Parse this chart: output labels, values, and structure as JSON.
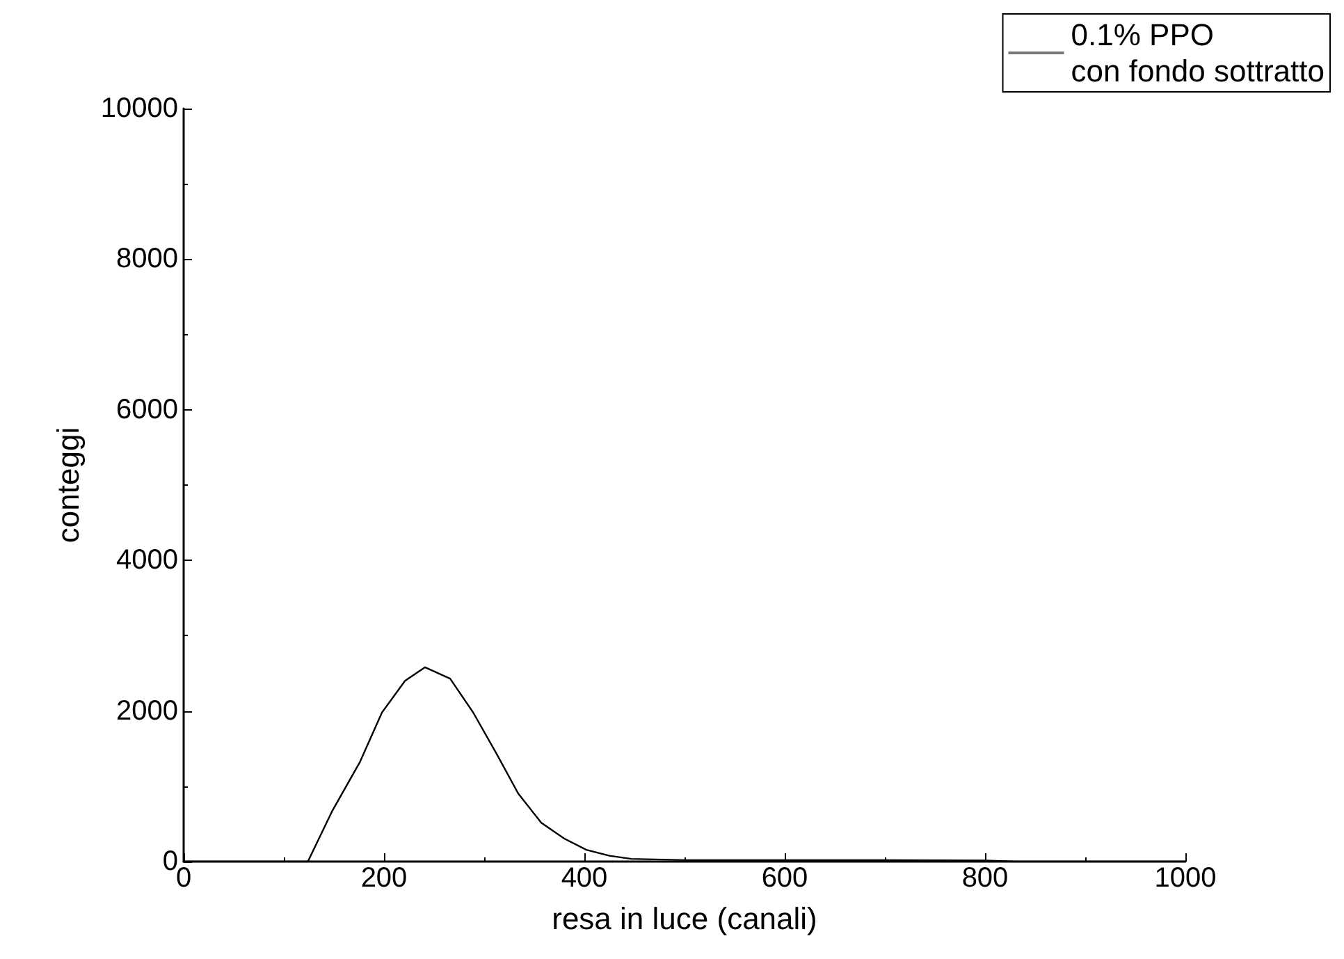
{
  "chart_data": {
    "type": "line",
    "xlabel": "resa in luce (canali)",
    "ylabel": "conteggi",
    "xlim": [
      0,
      1000
    ],
    "ylim": [
      0,
      10000
    ],
    "xticks": [
      0,
      200,
      400,
      600,
      800,
      1000
    ],
    "yticks": [
      0,
      2000,
      4000,
      6000,
      8000,
      10000
    ],
    "grid": false,
    "legend": "top right",
    "marker": "none",
    "line_style": "solid",
    "series": [
      {
        "name": "0.1% PPO\ncon fondo sottratto",
        "color": "#000000",
        "x": [
          0,
          60,
          124,
          148,
          176,
          198,
          221,
          241,
          266,
          289,
          312,
          334,
          357,
          380,
          402,
          425,
          447,
          500,
          600,
          700,
          800,
          830,
          900,
          1000
        ],
        "values": [
          0,
          0,
          0,
          664,
          1323,
          1980,
          2400,
          2580,
          2430,
          1980,
          1440,
          903,
          515,
          305,
          156,
          77,
          36,
          20,
          20,
          20,
          15,
          0,
          0,
          0
        ]
      }
    ]
  }
}
